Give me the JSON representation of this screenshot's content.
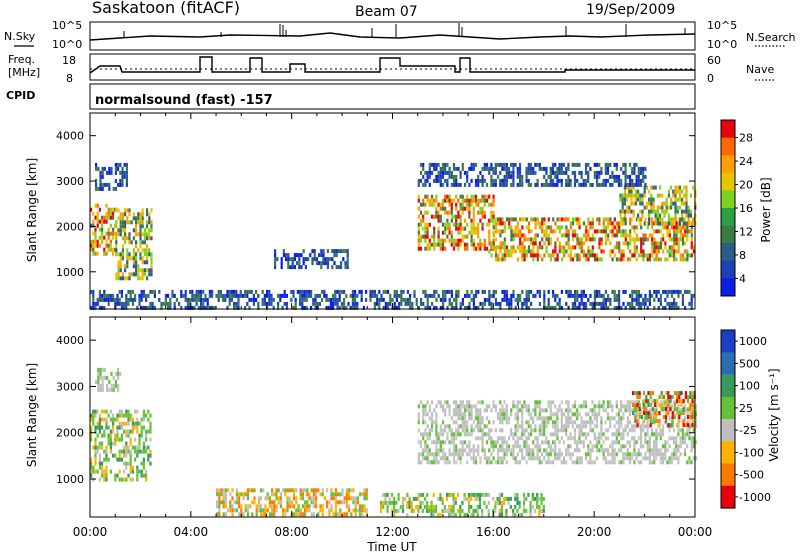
{
  "header": {
    "station": "Saskatoon (fitACF)",
    "beam": "Beam 07",
    "date": "19/Sep/2009"
  },
  "top_panels": {
    "noise": {
      "left_label": "N.Sky",
      "left_ticks": [
        "10^5",
        "10^0"
      ],
      "right_ticks": [
        "10^5",
        "10^0"
      ],
      "right_label": "N.Search"
    },
    "freq": {
      "left_label_line1": "Freq.",
      "left_label_line2": "[MHz]",
      "left_ticks": [
        "18",
        "8"
      ],
      "right_ticks": [
        "60",
        "0"
      ],
      "right_label": "Nave"
    },
    "cpid": {
      "label": "CPID",
      "program": "normalsound (fast) -157"
    }
  },
  "chart_data": [
    {
      "type": "heatmap",
      "panel": "power",
      "ylabel": "Slant Range [km]",
      "ylim": [
        180,
        4500
      ],
      "yticks": [
        1000,
        2000,
        3000,
        4000
      ],
      "xlim_hours": [
        0,
        24
      ],
      "xtick_labels": [
        "00:00",
        "04:00",
        "08:00",
        "12:00",
        "16:00",
        "20:00",
        "00:00"
      ],
      "colorbar": {
        "label": "Power [dB]",
        "ticks": [
          "28",
          "24",
          "20",
          "16",
          "12",
          "8",
          "4"
        ],
        "colors": [
          "#e8000b",
          "#ff6a00",
          "#ff9f00",
          "#e6c400",
          "#7ed321",
          "#2ea043",
          "#3a7d44",
          "#2b5c8a",
          "#1f3fb5",
          "#0a1ee6"
        ]
      },
      "regions": [
        {
          "t": [
            0.0,
            1.0
          ],
          "r": [
            1400,
            2500
          ],
          "level": "high"
        },
        {
          "t": [
            0.2,
            1.5
          ],
          "r": [
            2800,
            3400
          ],
          "level": "low"
        },
        {
          "t": [
            1.0,
            2.4
          ],
          "r": [
            900,
            2400
          ],
          "level": "mid"
        },
        {
          "t": [
            7.3,
            10.2
          ],
          "r": [
            1100,
            1500
          ],
          "level": "low"
        },
        {
          "t": [
            0.0,
            24.0
          ],
          "r": [
            200,
            600
          ],
          "level": "low"
        },
        {
          "t": [
            13.0,
            16.0
          ],
          "r": [
            1500,
            2700
          ],
          "level": "high"
        },
        {
          "t": [
            15.8,
            24.0
          ],
          "r": [
            1300,
            2200
          ],
          "level": "high"
        },
        {
          "t": [
            21.0,
            24.0
          ],
          "r": [
            2100,
            2900
          ],
          "level": "mid"
        },
        {
          "t": [
            13.0,
            22.0
          ],
          "r": [
            2900,
            3400
          ],
          "level": "low"
        }
      ]
    },
    {
      "type": "heatmap",
      "panel": "velocity",
      "ylabel": "Slant Range [km]",
      "ylim": [
        180,
        4500
      ],
      "yticks": [
        1000,
        2000,
        3000,
        4000
      ],
      "xlim_hours": [
        0,
        24
      ],
      "xtick_labels": [
        "00:00",
        "04:00",
        "08:00",
        "12:00",
        "16:00",
        "20:00",
        "00:00"
      ],
      "xlabel": "Time UT",
      "colorbar": {
        "label": "Velocity [m s⁻¹]",
        "ticks": [
          "1000",
          "500",
          "100",
          "25",
          "-25",
          "-100",
          "-500",
          "-1000"
        ],
        "colors": [
          "#1a3ec4",
          "#2b6db5",
          "#3a9a5a",
          "#63c23a",
          "#bfbfbf",
          "#ffb300",
          "#ff7a00",
          "#e8000b"
        ]
      },
      "regions": [
        {
          "t": [
            0.0,
            2.4
          ],
          "r": [
            1000,
            2500
          ],
          "level": "pos_small"
        },
        {
          "t": [
            0.2,
            1.2
          ],
          "r": [
            2900,
            3400
          ],
          "level": "zero"
        },
        {
          "t": [
            5.0,
            11.0
          ],
          "r": [
            250,
            800
          ],
          "level": "neg_small"
        },
        {
          "t": [
            11.5,
            18.0
          ],
          "r": [
            250,
            700
          ],
          "level": "pos_small"
        },
        {
          "t": [
            13.0,
            24.0
          ],
          "r": [
            1400,
            2700
          ],
          "level": "zero"
        },
        {
          "t": [
            21.5,
            24.0
          ],
          "r": [
            2200,
            2900
          ],
          "level": "mixed"
        }
      ]
    }
  ]
}
